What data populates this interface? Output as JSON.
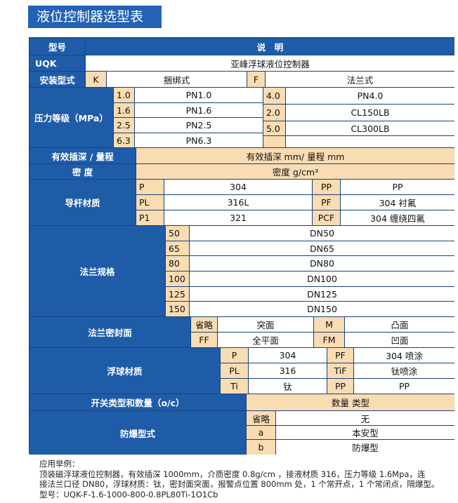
{
  "title": "液位控制器选型表",
  "header": {
    "col1": "型号",
    "col2": "说　明"
  },
  "model": {
    "code": "UQK",
    "desc": "亚峰浮球液位控制器"
  },
  "install": {
    "label": "安装型式",
    "k": "K",
    "k_desc": "捆绑式",
    "f": "F",
    "f_desc": "法兰式"
  },
  "pressure": {
    "label": "压力等级（MPa）",
    "left": [
      {
        "code": "1.0",
        "desc": "PN1.0"
      },
      {
        "code": "1.6",
        "desc": "PN1.6"
      },
      {
        "code": "2.5",
        "desc": "PN2.5"
      },
      {
        "code": "6.3",
        "desc": "PN6.3"
      }
    ],
    "right": [
      {
        "code": "4.0",
        "desc": "PN4.0"
      },
      {
        "code": "2.0",
        "desc": "CL150LB"
      },
      {
        "code": "5.0",
        "desc": "CL300LB"
      }
    ]
  },
  "depth": {
    "label": "有效插深 / 量程",
    "value": "有效插深 mm/ 量程 mm"
  },
  "density": {
    "label": "密  度",
    "value": "密度 g/cm³"
  },
  "rod": {
    "label": "导杆材质",
    "rows": [
      {
        "c1": "P",
        "d1": "304",
        "c2": "PP",
        "d2": "PP"
      },
      {
        "c1": "PL",
        "d1": "316L",
        "c2": "PF",
        "d2": "304 衬氟"
      },
      {
        "c1": "P1",
        "d1": "321",
        "c2": "PCF",
        "d2": "304 缠绕四氟"
      }
    ]
  },
  "flange": {
    "label": "法兰规格",
    "rows": [
      {
        "code": "50",
        "desc": "DN50"
      },
      {
        "code": "65",
        "desc": "DN65"
      },
      {
        "code": "80",
        "desc": "DN80"
      },
      {
        "code": "100",
        "desc": "DN100"
      },
      {
        "code": "125",
        "desc": "DN125"
      },
      {
        "code": "150",
        "desc": "DN150"
      }
    ]
  },
  "seal": {
    "label": "法兰密封面",
    "rows": [
      {
        "c1": "省略",
        "d1": "突面",
        "c2": "M",
        "d2": "凸面"
      },
      {
        "c1": "FF",
        "d1": "全平面",
        "c2": "FM",
        "d2": "凹面"
      }
    ]
  },
  "float": {
    "label": "浮球材质",
    "rows": [
      {
        "c1": "P",
        "d1": "304",
        "c2": "PF",
        "d2": "304 喷涂"
      },
      {
        "c1": "PL",
        "d1": "316",
        "c2": "TiF",
        "d2": "钛喷涂"
      },
      {
        "c1": "Ti",
        "d1": "钛",
        "c2": "PP",
        "d2": "PP"
      }
    ]
  },
  "switch": {
    "label": "开关类型和数量（o/c）",
    "value": "数量  类型"
  },
  "explosion": {
    "label": "防爆型式",
    "rows": [
      {
        "code": "省略",
        "desc": "无"
      },
      {
        "code": "a",
        "desc": "本安型"
      },
      {
        "code": "b",
        "desc": "防爆型"
      }
    ]
  },
  "footer": {
    "line1": "应用举例：",
    "line2": "顶装磁浮球液位控制器，有效插深 1000mm，介质密度 0.8g/cm  ，接液材质 316，压力等级 1.6Mpa，连",
    "line3": "接法兰口径 DN80，浮球材质：钛，密封面突面，报警点位置 800mm 处，1 个常开点，1 个常闭点，隔爆型。",
    "line4": "型号：UQK-F-1.6-1000-800-0.8PL80Ti-1O1Cb"
  }
}
